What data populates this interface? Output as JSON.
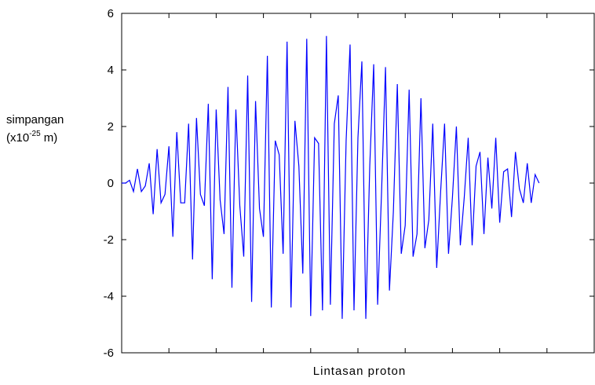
{
  "chart_data": {
    "type": "line",
    "title": "",
    "xlabel": "Lintasan proton",
    "ylabel": {
      "line1": "simpangan",
      "line2_prefix": "(x10",
      "line2_exponent": "-25",
      "line2_suffix": " m)"
    },
    "xlim": [
      0,
      120
    ],
    "ylim": [
      -6,
      6
    ],
    "yticks": [
      -6,
      -4,
      -2,
      0,
      2,
      4,
      6
    ],
    "ytick_labels": [
      "-6",
      "-4",
      "-2",
      "0",
      "2",
      "4",
      "6"
    ],
    "xticks": [
      0,
      12,
      24,
      36,
      48,
      60,
      72,
      84,
      96,
      108,
      120
    ],
    "line_color": "#0000ff",
    "grid": false,
    "series": [
      {
        "values": [
          0.0,
          0.0,
          0.1,
          -0.3,
          0.5,
          -0.3,
          -0.1,
          0.7,
          -1.1,
          1.2,
          -0.7,
          -0.4,
          1.3,
          -1.9,
          1.8,
          -0.7,
          -0.7,
          2.1,
          -2.7,
          2.3,
          -0.4,
          -0.8,
          2.8,
          -3.4,
          2.6,
          -0.6,
          -1.8,
          3.4,
          -3.7,
          2.6,
          -0.8,
          -2.6,
          3.8,
          -4.2,
          2.9,
          -0.9,
          -1.9,
          4.5,
          -4.4,
          1.5,
          1.0,
          -2.5,
          5.0,
          -4.4,
          2.2,
          0.6,
          -3.2,
          5.1,
          -4.7,
          1.6,
          1.4,
          -4.5,
          5.2,
          -4.3,
          2.1,
          3.1,
          -4.8,
          1.5,
          4.9,
          -4.5,
          1.6,
          4.3,
          -4.8,
          0.6,
          4.2,
          -4.3,
          -0.3,
          4.1,
          -3.8,
          -1.0,
          3.5,
          -2.5,
          -1.5,
          3.3,
          -2.6,
          -1.8,
          3.0,
          -2.3,
          -1.3,
          2.1,
          -3.0,
          -0.3,
          2.1,
          -2.5,
          -0.5,
          2.0,
          -2.2,
          -0.5,
          1.6,
          -2.2,
          0.6,
          1.1,
          -1.8,
          0.9,
          -0.9,
          1.6,
          -1.4,
          0.4,
          0.5,
          -1.2,
          1.1,
          -0.2,
          -0.7,
          0.7,
          -0.7,
          0.3,
          0.0
        ]
      }
    ]
  }
}
